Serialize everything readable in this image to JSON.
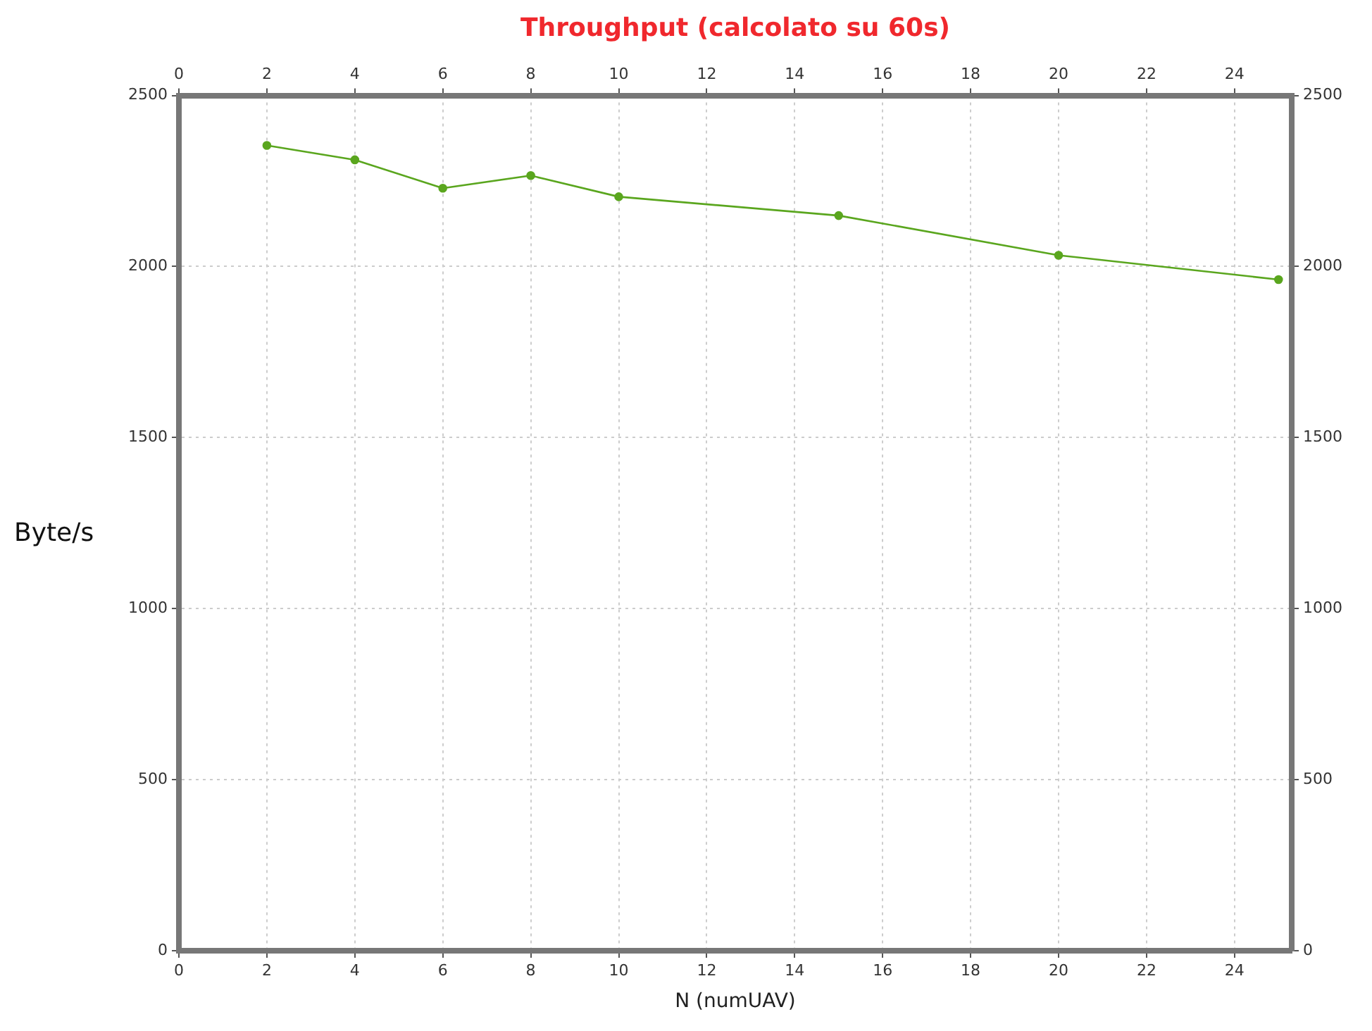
{
  "chart_data": {
    "type": "line",
    "title": "Throughput (calcolato su 60s)",
    "xlabel": "N (numUAV)",
    "ylabel": "Byte/s",
    "x": [
      2,
      4,
      6,
      8,
      10,
      15,
      20,
      25
    ],
    "series": [
      {
        "color": "#5aa61e",
        "values": [
          2354,
          2312,
          2229,
          2266,
          2204,
          2149,
          2033,
          1962
        ]
      }
    ],
    "xlim": [
      0,
      25.3
    ],
    "xticks": [
      0,
      2,
      4,
      6,
      8,
      10,
      12,
      14,
      16,
      18,
      20,
      22,
      24
    ],
    "x2lim": [
      0,
      25.3
    ],
    "x2ticks": [
      0,
      2,
      4,
      6,
      8,
      10,
      12,
      14,
      16,
      18,
      20,
      22,
      24
    ],
    "ylim": [
      0,
      2500
    ],
    "yticks": [
      0,
      500,
      1000,
      1500,
      2000,
      2500
    ],
    "y2lim": [
      0,
      2500
    ],
    "y2ticks": [
      0,
      500,
      1000,
      1500,
      2000,
      2500
    ],
    "grid": true,
    "marker": "circle",
    "line_style": "solid",
    "legend": false
  }
}
